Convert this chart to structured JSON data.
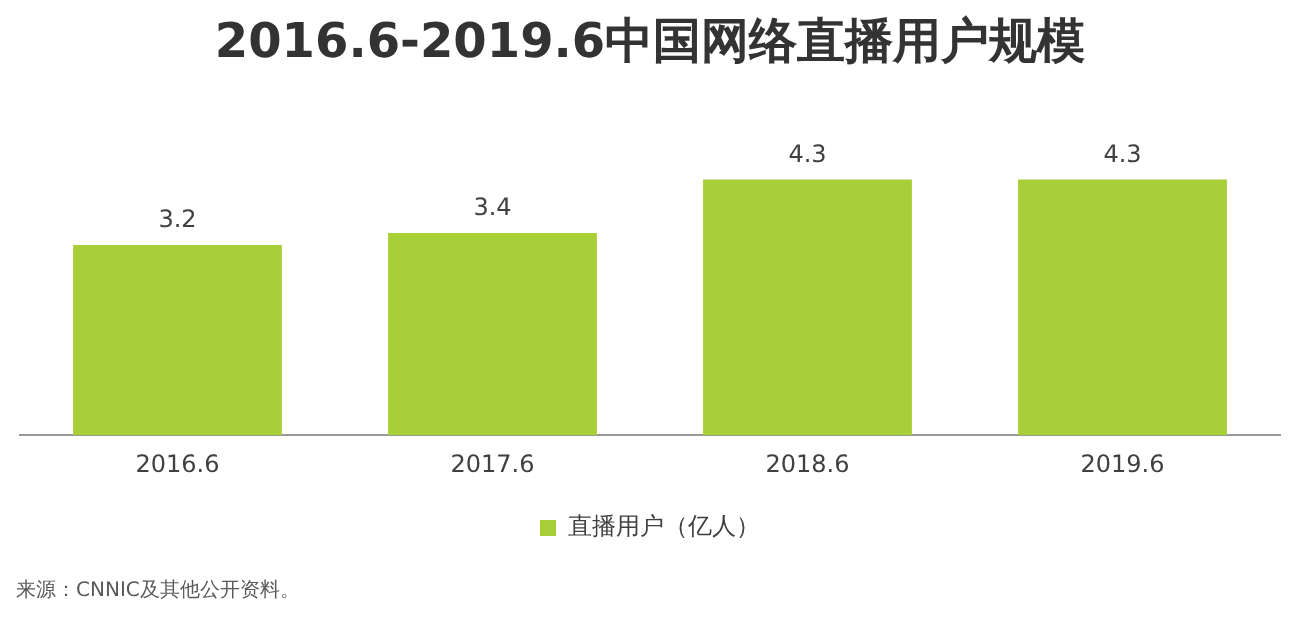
{
  "chart_data": {
    "type": "bar",
    "title": "2016.6-2019.6中国网络直播用户规模",
    "categories": [
      "2016.6",
      "2017.6",
      "2018.6",
      "2019.6"
    ],
    "series": [
      {
        "name": "直播用户（亿人）",
        "color": "#a9cf38",
        "values": [
          3.2,
          3.4,
          4.3,
          4.3
        ]
      }
    ],
    "data_labels": true,
    "legend": "bottom",
    "grid": false,
    "annotations": [
      "来源：CNNIC及其他公开资料。"
    ]
  }
}
